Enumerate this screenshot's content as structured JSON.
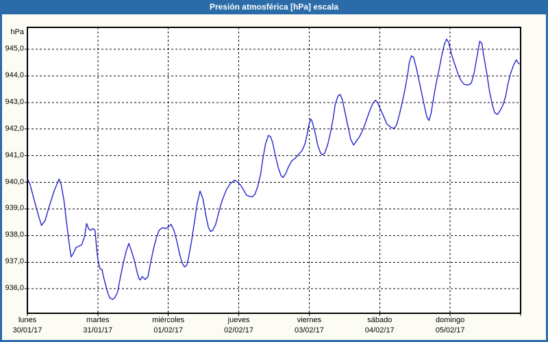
{
  "title": "Presión atmosférica [hPa] escala",
  "colors": {
    "frame_and_titlebar": "#2b6ca8",
    "title_text": "#ffffff",
    "background": "#fcfcf4",
    "plot_background": "#ffffff",
    "grid_and_axes": "#000000",
    "line": "#2222cc"
  },
  "chart_data": {
    "type": "line",
    "title": "Presión atmosférica [hPa] escala",
    "ylabel": "hPa",
    "legend_position": "none",
    "grid": "dashed",
    "ylim": [
      935.08,
      945.82
    ],
    "xlim_days": [
      0,
      7
    ],
    "y_ticks": [
      945,
      944,
      943,
      942,
      941,
      940,
      939,
      938,
      937,
      936
    ],
    "y_tick_labels": [
      "945,0",
      "944,0",
      "943,0",
      "942,0",
      "941,0",
      "940,0",
      "939,0",
      "938,0",
      "937,0",
      "936,0"
    ],
    "x_categories": [
      {
        "day": "lunes",
        "date": "30/01/17"
      },
      {
        "day": "martes",
        "date": "31/01/17"
      },
      {
        "day": "miércoles",
        "date": "01/02/17"
      },
      {
        "day": "jueves",
        "date": "02/02/17"
      },
      {
        "day": "viernes",
        "date": "03/02/17"
      },
      {
        "day": "sábado",
        "date": "04/02/17"
      },
      {
        "day": "domingo",
        "date": "05/02/17"
      }
    ],
    "series": [
      {
        "name": "Presión atmosférica [hPa]",
        "color": "#2222cc",
        "x_unit": "days_since_30_01_17",
        "points": [
          [
            0.0,
            940.15
          ],
          [
            0.04,
            939.9
          ],
          [
            0.1,
            939.3
          ],
          [
            0.16,
            938.72
          ],
          [
            0.2,
            938.38
          ],
          [
            0.25,
            938.55
          ],
          [
            0.31,
            939.1
          ],
          [
            0.38,
            939.68
          ],
          [
            0.45,
            940.12
          ],
          [
            0.48,
            939.9
          ],
          [
            0.52,
            939.3
          ],
          [
            0.55,
            938.6
          ],
          [
            0.59,
            937.75
          ],
          [
            0.62,
            937.2
          ],
          [
            0.65,
            937.32
          ],
          [
            0.69,
            937.55
          ],
          [
            0.73,
            937.6
          ],
          [
            0.77,
            937.65
          ],
          [
            0.81,
            937.95
          ],
          [
            0.84,
            938.45
          ],
          [
            0.87,
            938.25
          ],
          [
            0.9,
            938.2
          ],
          [
            0.93,
            938.26
          ],
          [
            0.96,
            938.2
          ],
          [
            0.98,
            937.6
          ],
          [
            1.0,
            937.1
          ],
          [
            1.03,
            936.75
          ],
          [
            1.06,
            936.72
          ],
          [
            1.08,
            936.45
          ],
          [
            1.11,
            936.15
          ],
          [
            1.14,
            935.85
          ],
          [
            1.17,
            935.65
          ],
          [
            1.21,
            935.6
          ],
          [
            1.24,
            935.66
          ],
          [
            1.28,
            935.88
          ],
          [
            1.32,
            936.45
          ],
          [
            1.36,
            936.95
          ],
          [
            1.4,
            937.4
          ],
          [
            1.44,
            937.7
          ],
          [
            1.48,
            937.4
          ],
          [
            1.52,
            937.05
          ],
          [
            1.55,
            936.7
          ],
          [
            1.58,
            936.4
          ],
          [
            1.6,
            936.33
          ],
          [
            1.63,
            936.46
          ],
          [
            1.67,
            936.35
          ],
          [
            1.71,
            936.45
          ],
          [
            1.75,
            937.0
          ],
          [
            1.79,
            937.5
          ],
          [
            1.83,
            937.9
          ],
          [
            1.87,
            938.2
          ],
          [
            1.92,
            938.3
          ],
          [
            1.95,
            938.26
          ],
          [
            1.99,
            938.3
          ],
          [
            2.04,
            938.42
          ],
          [
            2.08,
            938.2
          ],
          [
            2.12,
            937.8
          ],
          [
            2.16,
            937.3
          ],
          [
            2.2,
            936.95
          ],
          [
            2.23,
            936.82
          ],
          [
            2.26,
            936.88
          ],
          [
            2.29,
            937.2
          ],
          [
            2.33,
            937.8
          ],
          [
            2.37,
            938.5
          ],
          [
            2.41,
            939.2
          ],
          [
            2.45,
            939.67
          ],
          [
            2.49,
            939.4
          ],
          [
            2.53,
            938.8
          ],
          [
            2.57,
            938.3
          ],
          [
            2.6,
            938.15
          ],
          [
            2.63,
            938.2
          ],
          [
            2.67,
            938.4
          ],
          [
            2.71,
            938.8
          ],
          [
            2.75,
            939.2
          ],
          [
            2.79,
            939.5
          ],
          [
            2.83,
            939.75
          ],
          [
            2.88,
            939.95
          ],
          [
            2.94,
            940.08
          ],
          [
            2.98,
            940.02
          ],
          [
            3.03,
            939.88
          ],
          [
            3.07,
            939.7
          ],
          [
            3.11,
            939.52
          ],
          [
            3.15,
            939.47
          ],
          [
            3.19,
            939.45
          ],
          [
            3.23,
            939.55
          ],
          [
            3.27,
            939.85
          ],
          [
            3.31,
            940.3
          ],
          [
            3.34,
            940.85
          ],
          [
            3.38,
            941.45
          ],
          [
            3.42,
            941.76
          ],
          [
            3.45,
            941.72
          ],
          [
            3.48,
            941.5
          ],
          [
            3.52,
            941.0
          ],
          [
            3.56,
            940.55
          ],
          [
            3.6,
            940.25
          ],
          [
            3.63,
            940.18
          ],
          [
            3.67,
            940.35
          ],
          [
            3.7,
            940.55
          ],
          [
            3.75,
            940.8
          ],
          [
            3.8,
            940.9
          ],
          [
            3.85,
            941.05
          ],
          [
            3.9,
            941.2
          ],
          [
            3.94,
            941.45
          ],
          [
            3.97,
            941.8
          ],
          [
            4.0,
            942.2
          ],
          [
            4.02,
            942.38
          ],
          [
            4.04,
            942.3
          ],
          [
            4.08,
            941.9
          ],
          [
            4.12,
            941.4
          ],
          [
            4.16,
            941.1
          ],
          [
            4.19,
            941.03
          ],
          [
            4.22,
            941.1
          ],
          [
            4.26,
            941.4
          ],
          [
            4.3,
            941.85
          ],
          [
            4.34,
            942.4
          ],
          [
            4.37,
            942.95
          ],
          [
            4.41,
            943.25
          ],
          [
            4.44,
            943.3
          ],
          [
            4.47,
            943.1
          ],
          [
            4.51,
            942.6
          ],
          [
            4.55,
            942.1
          ],
          [
            4.59,
            941.6
          ],
          [
            4.63,
            941.4
          ],
          [
            4.67,
            941.55
          ],
          [
            4.71,
            941.7
          ],
          [
            4.74,
            941.85
          ],
          [
            4.78,
            942.1
          ],
          [
            4.82,
            942.4
          ],
          [
            4.86,
            942.7
          ],
          [
            4.9,
            942.95
          ],
          [
            4.94,
            943.08
          ],
          [
            4.97,
            943.0
          ],
          [
            5.01,
            942.75
          ],
          [
            5.06,
            942.45
          ],
          [
            5.1,
            942.2
          ],
          [
            5.15,
            942.08
          ],
          [
            5.2,
            942.02
          ],
          [
            5.24,
            942.15
          ],
          [
            5.28,
            942.55
          ],
          [
            5.32,
            943.0
          ],
          [
            5.36,
            943.5
          ],
          [
            5.4,
            944.1
          ],
          [
            5.42,
            944.5
          ],
          [
            5.45,
            944.75
          ],
          [
            5.48,
            944.7
          ],
          [
            5.52,
            944.3
          ],
          [
            5.56,
            943.8
          ],
          [
            5.6,
            943.3
          ],
          [
            5.64,
            942.8
          ],
          [
            5.67,
            942.45
          ],
          [
            5.7,
            942.32
          ],
          [
            5.73,
            942.6
          ],
          [
            5.76,
            943.1
          ],
          [
            5.8,
            943.7
          ],
          [
            5.84,
            944.2
          ],
          [
            5.88,
            944.75
          ],
          [
            5.92,
            945.2
          ],
          [
            5.95,
            945.38
          ],
          [
            5.98,
            945.25
          ],
          [
            6.01,
            944.9
          ],
          [
            6.05,
            944.55
          ],
          [
            6.09,
            944.25
          ],
          [
            6.12,
            944.0
          ],
          [
            6.16,
            943.8
          ],
          [
            6.2,
            943.68
          ],
          [
            6.25,
            943.65
          ],
          [
            6.3,
            943.72
          ],
          [
            6.34,
            944.1
          ],
          [
            6.38,
            944.7
          ],
          [
            6.42,
            945.3
          ],
          [
            6.45,
            945.22
          ],
          [
            6.48,
            944.7
          ],
          [
            6.52,
            944.1
          ],
          [
            6.56,
            943.4
          ],
          [
            6.6,
            942.9
          ],
          [
            6.63,
            942.62
          ],
          [
            6.67,
            942.55
          ],
          [
            6.71,
            942.7
          ],
          [
            6.75,
            942.9
          ],
          [
            6.79,
            943.25
          ],
          [
            6.82,
            943.7
          ],
          [
            6.86,
            944.1
          ],
          [
            6.9,
            944.4
          ],
          [
            6.94,
            944.6
          ],
          [
            6.96,
            944.5
          ],
          [
            6.98,
            944.45
          ]
        ]
      }
    ]
  }
}
